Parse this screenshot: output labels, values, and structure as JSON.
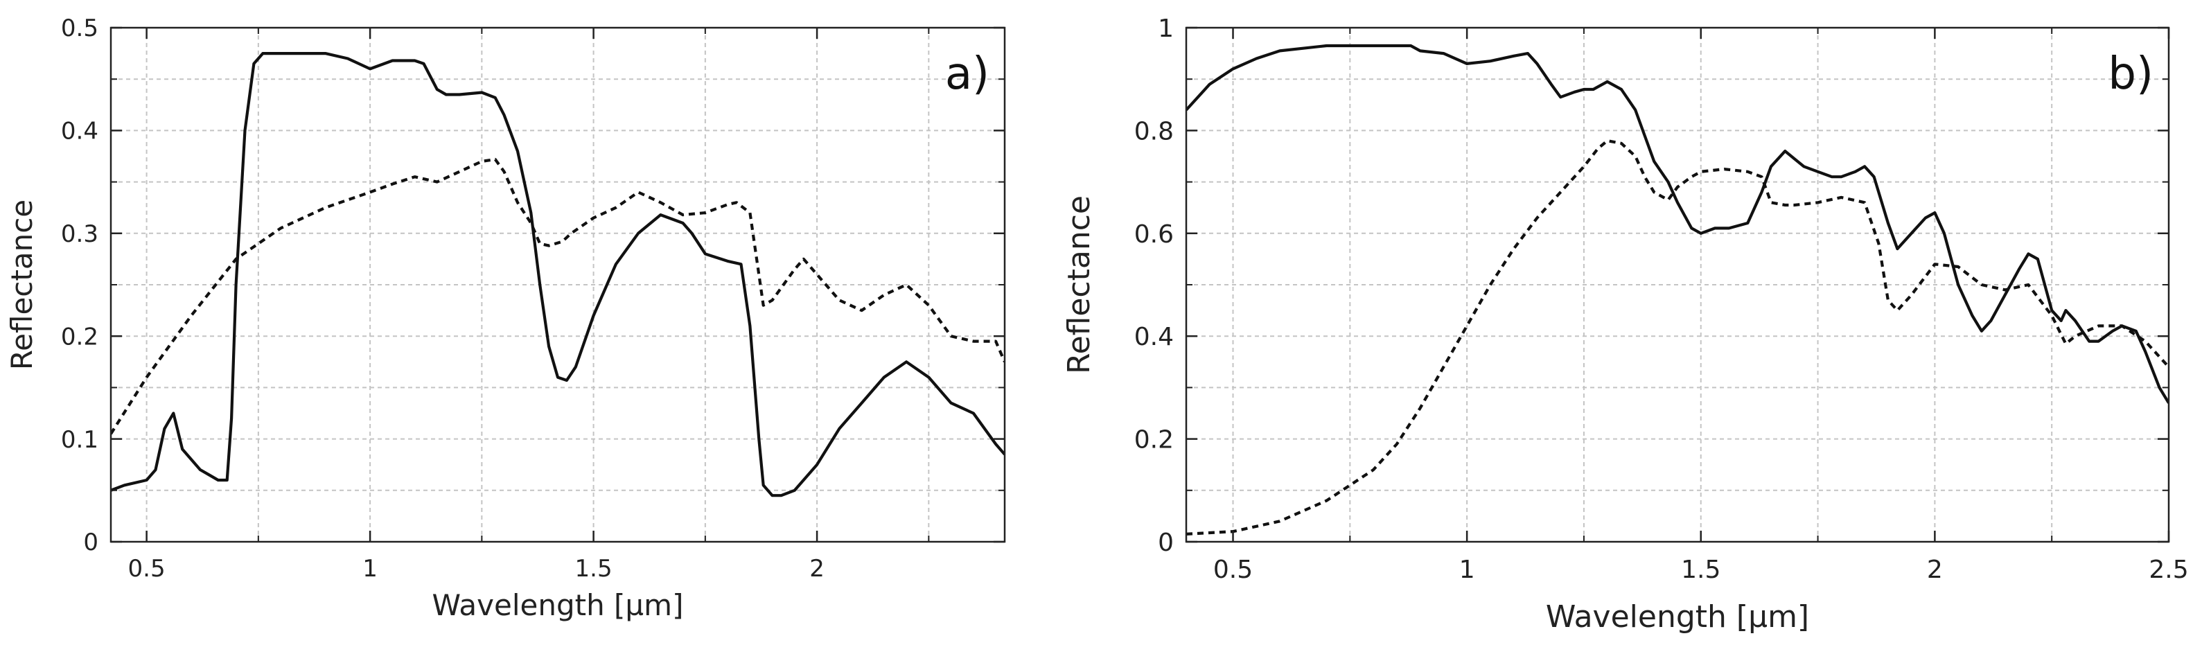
{
  "chart_data": [
    {
      "type": "line",
      "panel_label": "a)",
      "xlabel": "Wavelength [µm]",
      "ylabel": "Reflectance",
      "xlim": [
        0.42,
        2.42
      ],
      "ylim": [
        0,
        0.5
      ],
      "x_major_ticks": [
        0.5,
        1,
        1.5,
        2
      ],
      "x_tick_labels": [
        "0.5",
        "1",
        "1.5",
        "2"
      ],
      "x_minor_ticks": [
        0.75,
        1.25,
        1.75,
        2.25
      ],
      "y_major_ticks": [
        0,
        0.1,
        0.2,
        0.3,
        0.4,
        0.5
      ],
      "y_tick_labels": [
        "0",
        "0.1",
        "0.2",
        "0.3",
        "0.4",
        "0.5"
      ],
      "y_minor_ticks": [
        0.05,
        0.15,
        0.25,
        0.35,
        0.45
      ],
      "grid": true,
      "series": [
        {
          "style": "solid",
          "x": [
            0.42,
            0.45,
            0.5,
            0.52,
            0.54,
            0.56,
            0.58,
            0.6,
            0.62,
            0.64,
            0.66,
            0.68,
            0.69,
            0.7,
            0.72,
            0.74,
            0.76,
            0.78,
            0.8,
            0.85,
            0.9,
            0.95,
            1.0,
            1.05,
            1.1,
            1.12,
            1.15,
            1.17,
            1.2,
            1.25,
            1.28,
            1.3,
            1.33,
            1.36,
            1.38,
            1.4,
            1.42,
            1.44,
            1.46,
            1.5,
            1.55,
            1.6,
            1.65,
            1.7,
            1.72,
            1.75,
            1.8,
            1.83,
            1.85,
            1.87,
            1.88,
            1.9,
            1.92,
            1.95,
            2.0,
            2.05,
            2.1,
            2.15,
            2.2,
            2.25,
            2.3,
            2.35,
            2.4,
            2.42
          ],
          "y": [
            0.05,
            0.055,
            0.06,
            0.07,
            0.11,
            0.125,
            0.09,
            0.08,
            0.07,
            0.065,
            0.06,
            0.06,
            0.12,
            0.25,
            0.4,
            0.465,
            0.475,
            0.475,
            0.475,
            0.475,
            0.475,
            0.47,
            0.46,
            0.468,
            0.468,
            0.465,
            0.44,
            0.435,
            0.435,
            0.437,
            0.432,
            0.415,
            0.38,
            0.32,
            0.25,
            0.19,
            0.16,
            0.157,
            0.17,
            0.22,
            0.27,
            0.3,
            0.318,
            0.31,
            0.3,
            0.28,
            0.273,
            0.27,
            0.21,
            0.1,
            0.055,
            0.045,
            0.045,
            0.05,
            0.075,
            0.11,
            0.135,
            0.16,
            0.175,
            0.16,
            0.135,
            0.125,
            0.095,
            0.085
          ]
        },
        {
          "style": "dashed",
          "x": [
            0.42,
            0.5,
            0.6,
            0.7,
            0.8,
            0.9,
            1.0,
            1.05,
            1.1,
            1.15,
            1.2,
            1.25,
            1.28,
            1.3,
            1.33,
            1.36,
            1.38,
            1.4,
            1.43,
            1.45,
            1.5,
            1.55,
            1.6,
            1.65,
            1.7,
            1.75,
            1.8,
            1.82,
            1.85,
            1.88,
            1.9,
            1.95,
            1.97,
            2.0,
            2.05,
            2.1,
            2.15,
            2.2,
            2.25,
            2.3,
            2.35,
            2.4,
            2.42
          ],
          "y": [
            0.105,
            0.16,
            0.22,
            0.275,
            0.305,
            0.325,
            0.34,
            0.348,
            0.355,
            0.35,
            0.36,
            0.37,
            0.372,
            0.36,
            0.33,
            0.31,
            0.29,
            0.288,
            0.292,
            0.3,
            0.315,
            0.325,
            0.34,
            0.33,
            0.318,
            0.32,
            0.328,
            0.33,
            0.32,
            0.23,
            0.235,
            0.265,
            0.275,
            0.26,
            0.235,
            0.225,
            0.24,
            0.25,
            0.23,
            0.2,
            0.195,
            0.195,
            0.175
          ]
        }
      ]
    },
    {
      "type": "line",
      "panel_label": "b)",
      "xlabel": "Wavelength [µm]",
      "ylabel": "Reflectance",
      "xlim": [
        0.4,
        2.5
      ],
      "ylim": [
        0,
        1
      ],
      "x_major_ticks": [
        0.5,
        1,
        1.5,
        2,
        2.5
      ],
      "x_tick_labels": [
        "0.5",
        "1",
        "1.5",
        "2",
        "2.5"
      ],
      "x_minor_ticks": [
        0.75,
        1.25,
        1.75,
        2.25
      ],
      "y_major_ticks": [
        0,
        0.2,
        0.4,
        0.6,
        0.8,
        1
      ],
      "y_tick_labels": [
        "0",
        "0.2",
        "0.4",
        "0.6",
        "0.8",
        "1"
      ],
      "y_minor_ticks": [
        0.1,
        0.3,
        0.5,
        0.7,
        0.9
      ],
      "grid": true,
      "series": [
        {
          "style": "solid",
          "x": [
            0.4,
            0.45,
            0.5,
            0.55,
            0.6,
            0.7,
            0.8,
            0.85,
            0.88,
            0.9,
            0.95,
            1.0,
            1.05,
            1.1,
            1.13,
            1.15,
            1.18,
            1.2,
            1.23,
            1.25,
            1.27,
            1.3,
            1.33,
            1.36,
            1.38,
            1.4,
            1.43,
            1.45,
            1.48,
            1.5,
            1.53,
            1.56,
            1.6,
            1.63,
            1.65,
            1.68,
            1.7,
            1.72,
            1.75,
            1.78,
            1.8,
            1.83,
            1.85,
            1.87,
            1.9,
            1.92,
            1.95,
            1.98,
            2.0,
            2.02,
            2.05,
            2.08,
            2.1,
            2.12,
            2.15,
            2.18,
            2.2,
            2.22,
            2.25,
            2.27,
            2.28,
            2.3,
            2.33,
            2.35,
            2.38,
            2.4,
            2.43,
            2.45,
            2.48,
            2.5
          ],
          "y": [
            0.84,
            0.89,
            0.92,
            0.94,
            0.955,
            0.965,
            0.965,
            0.965,
            0.965,
            0.955,
            0.95,
            0.93,
            0.935,
            0.945,
            0.95,
            0.93,
            0.89,
            0.865,
            0.875,
            0.88,
            0.88,
            0.895,
            0.88,
            0.84,
            0.79,
            0.74,
            0.7,
            0.66,
            0.61,
            0.6,
            0.61,
            0.61,
            0.62,
            0.68,
            0.73,
            0.76,
            0.745,
            0.73,
            0.72,
            0.71,
            0.71,
            0.72,
            0.73,
            0.71,
            0.62,
            0.57,
            0.6,
            0.63,
            0.64,
            0.6,
            0.5,
            0.44,
            0.41,
            0.43,
            0.48,
            0.53,
            0.56,
            0.55,
            0.45,
            0.43,
            0.45,
            0.43,
            0.39,
            0.39,
            0.41,
            0.42,
            0.41,
            0.37,
            0.3,
            0.27
          ]
        },
        {
          "style": "dashed",
          "x": [
            0.4,
            0.5,
            0.6,
            0.7,
            0.8,
            0.85,
            0.9,
            0.95,
            1.0,
            1.05,
            1.1,
            1.15,
            1.2,
            1.25,
            1.28,
            1.3,
            1.33,
            1.36,
            1.38,
            1.4,
            1.43,
            1.45,
            1.48,
            1.5,
            1.55,
            1.6,
            1.63,
            1.65,
            1.68,
            1.7,
            1.75,
            1.8,
            1.85,
            1.88,
            1.9,
            1.92,
            1.95,
            2.0,
            2.05,
            2.1,
            2.15,
            2.2,
            2.25,
            2.28,
            2.3,
            2.35,
            2.4,
            2.45,
            2.5
          ],
          "y": [
            0.015,
            0.02,
            0.04,
            0.08,
            0.14,
            0.19,
            0.26,
            0.34,
            0.42,
            0.5,
            0.57,
            0.63,
            0.68,
            0.73,
            0.765,
            0.78,
            0.775,
            0.75,
            0.71,
            0.68,
            0.665,
            0.69,
            0.71,
            0.72,
            0.725,
            0.72,
            0.71,
            0.66,
            0.655,
            0.655,
            0.66,
            0.67,
            0.66,
            0.58,
            0.47,
            0.45,
            0.48,
            0.54,
            0.535,
            0.5,
            0.49,
            0.5,
            0.44,
            0.385,
            0.4,
            0.42,
            0.42,
            0.39,
            0.34
          ]
        }
      ]
    }
  ]
}
